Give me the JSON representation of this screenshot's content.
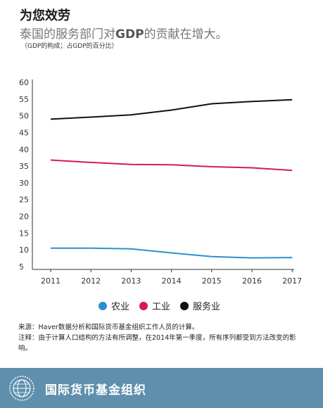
{
  "header": {
    "title": "为您效劳",
    "subtitle_prefix": "泰国的服务部门对",
    "subtitle_unit": "GDP",
    "subtitle_suffix": "的贡献在增大。",
    "note": "（GDP的构成；占GDP的百分比）"
  },
  "chart_data": {
    "type": "line",
    "title": "泰国的服务部门对GDP的贡献在增大。",
    "subtitle": "（GDP的构成；占GDP的百分比）",
    "x": [
      "2011",
      "2012",
      "2013",
      "2014",
      "2015",
      "2016",
      "2017"
    ],
    "ylim": [
      5,
      60
    ],
    "yticks": [
      5,
      10,
      15,
      20,
      25,
      30,
      35,
      40,
      45,
      50,
      55,
      60
    ],
    "grid": false,
    "legend_position": "bottom",
    "series": [
      {
        "name": "农业",
        "color": "#2b8fd0",
        "values": [
          10.5,
          10.5,
          10.3,
          9.1,
          8.0,
          7.6,
          7.7
        ]
      },
      {
        "name": "工业",
        "color": "#d6185e",
        "values": [
          36.8,
          36.1,
          35.5,
          35.4,
          34.8,
          34.5,
          33.7
        ]
      },
      {
        "name": "服务业",
        "color": "#111111",
        "values": [
          49.0,
          49.6,
          50.3,
          51.7,
          53.6,
          54.3,
          54.8
        ]
      }
    ]
  },
  "legend": {
    "items": [
      {
        "label": "农业",
        "color": "#2b8fd0"
      },
      {
        "label": "工业",
        "color": "#d6185e"
      },
      {
        "label": "服务业",
        "color": "#111111"
      }
    ]
  },
  "source": {
    "line1": "来源：Haver数据分析和国际货币基金组织工作人员的计算。",
    "line2": "注释：由于计算人口结构的方法有所调整，在2014年第一季度，所有序列都受到方法改变的影响。"
  },
  "footer": {
    "org_name": "国际货币基金组织",
    "logo_icon": "imf-seal-icon",
    "background": "#5f8fad"
  }
}
